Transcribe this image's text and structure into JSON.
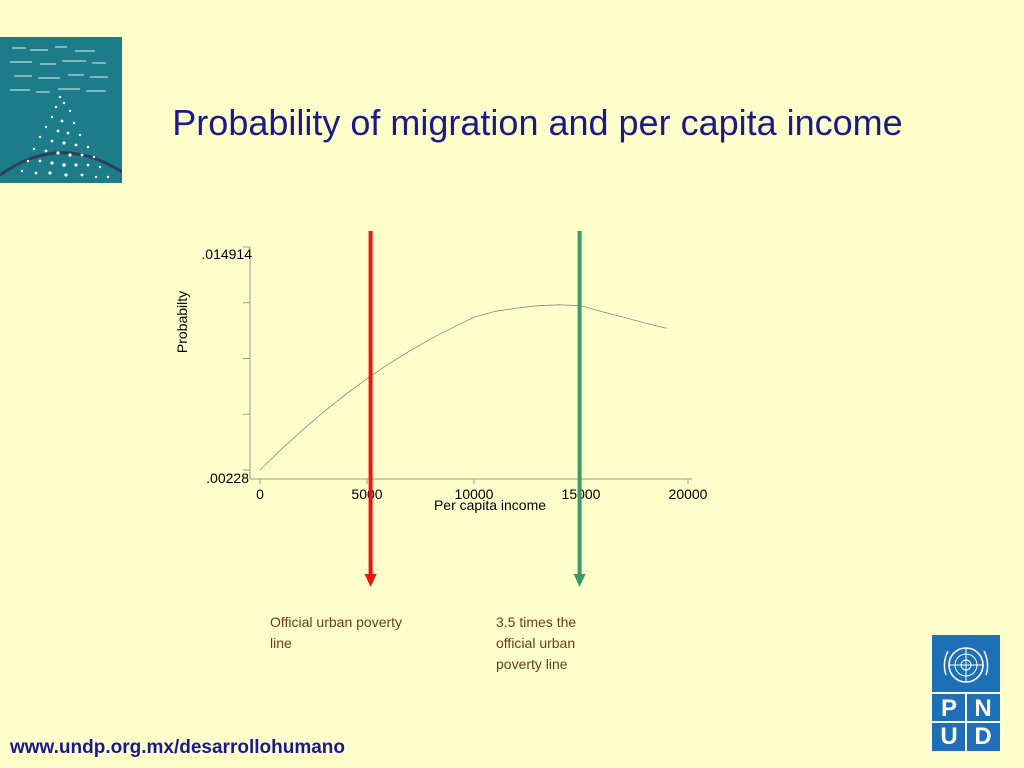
{
  "slide": {
    "title": "Probability of migration and per capita income",
    "footer_url": "www.undp.org.mx/desarrollohumano"
  },
  "annotations": {
    "red_line_label": "Official urban poverty line",
    "green_line_label": "3.5 times the official urban poverty line"
  },
  "logo": {
    "letters": [
      "P",
      "N",
      "U",
      "D"
    ]
  },
  "colors": {
    "background": "#FFFFCC",
    "title": "#1A1A8C",
    "red_line": "#E8160C",
    "green_line": "#3A9A6A",
    "annotation_text": "#6B3A1F",
    "logo_blue": "#1D6FB8"
  },
  "chart_data": {
    "type": "line",
    "title": "",
    "xlabel": "Per capita income",
    "ylabel": "Probabilty",
    "xlim": [
      0,
      20000
    ],
    "ylim": [
      0.00228,
      0.014914
    ],
    "x_ticks": [
      "0",
      "5000",
      "10000",
      "15000",
      "20000"
    ],
    "y_tick_labels": [
      ".014914",
      ".00228"
    ],
    "series": [
      {
        "x": [
          0,
          1000,
          2000,
          3000,
          4000,
          5000,
          6000,
          7000,
          8000,
          9000,
          10000,
          11000,
          12000,
          13000,
          14000,
          15000,
          16000,
          17000,
          18000,
          19000
        ],
        "values": [
          0.00228,
          0.00346,
          0.00456,
          0.0056,
          0.00656,
          0.00745,
          0.00828,
          0.00903,
          0.00972,
          0.01034,
          0.01093,
          0.01127,
          0.01145,
          0.01159,
          0.01164,
          0.01158,
          0.01125,
          0.01093,
          0.0106,
          0.01031
        ]
      }
    ],
    "vertical_markers": [
      {
        "x": 4000,
        "color": "#E8160C"
      },
      {
        "x": 14000,
        "color": "#3A9A6A"
      }
    ]
  }
}
